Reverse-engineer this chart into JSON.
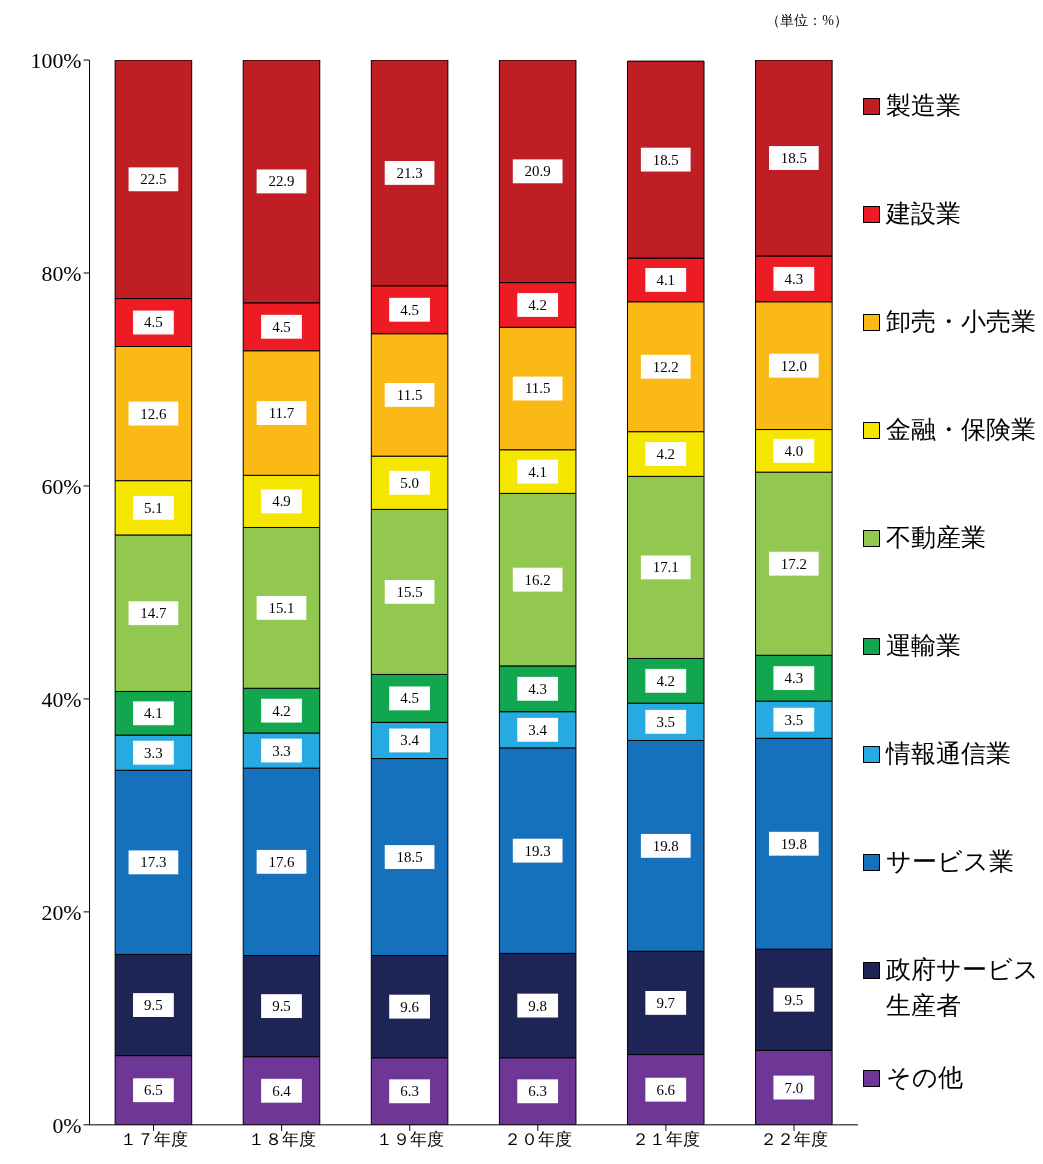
{
  "chart_data": {
    "type": "bar",
    "stacked": true,
    "annotations": [
      "（単位：%）"
    ],
    "categories": [
      "１７年度",
      "１８年度",
      "１９年度",
      "２０年度",
      "２１年度",
      "２２年度"
    ],
    "series": [
      {
        "name": "その他",
        "color": "#6f3795",
        "values": [
          6.5,
          6.4,
          6.3,
          6.3,
          6.6,
          7.0
        ],
        "value_labels": [
          "6.5",
          "6.4",
          "6.3",
          "6.3",
          "6.6",
          "7.0"
        ]
      },
      {
        "name": "政府サービス生産者",
        "color": "#1f2456",
        "values": [
          9.5,
          9.5,
          9.6,
          9.8,
          9.7,
          9.5
        ]
      },
      {
        "name": "サービス業",
        "color": "#1571bc",
        "values": [
          17.3,
          17.6,
          18.5,
          19.3,
          19.8,
          19.8
        ]
      },
      {
        "name": "情報通信業",
        "color": "#27aae1",
        "values": [
          3.3,
          3.3,
          3.4,
          3.4,
          3.5,
          3.5
        ]
      },
      {
        "name": "運輸業",
        "color": "#12a74f",
        "values": [
          4.1,
          4.2,
          4.5,
          4.3,
          4.2,
          4.3
        ]
      },
      {
        "name": "不動産業",
        "color": "#92c84f",
        "values": [
          14.7,
          15.1,
          15.5,
          16.2,
          17.1,
          17.2
        ]
      },
      {
        "name": "金融・保険業",
        "color": "#f5e600",
        "values": [
          5.1,
          4.9,
          5.0,
          4.1,
          4.2,
          4.0
        ],
        "value_labels": [
          "5.1",
          "4.9",
          "5.0",
          "4.1",
          "4.2",
          "4.0"
        ]
      },
      {
        "name": "卸売・小売業",
        "color": "#fbb916",
        "values": [
          12.6,
          11.7,
          11.5,
          11.5,
          12.2,
          12.0
        ],
        "value_labels": [
          "12.6",
          "11.7",
          "11.5",
          "11.5",
          "12.2",
          "12.0"
        ]
      },
      {
        "name": "建設業",
        "color": "#ed1c24",
        "values": [
          4.5,
          4.5,
          4.5,
          4.2,
          4.1,
          4.3
        ]
      },
      {
        "name": "製造業",
        "color": "#be1e24",
        "values": [
          22.5,
          22.9,
          21.3,
          20.9,
          18.5,
          18.5
        ]
      }
    ],
    "ylim": [
      0,
      100
    ],
    "yticks": [
      {
        "value": 0,
        "label": "0%"
      },
      {
        "value": 20,
        "label": "20%"
      },
      {
        "value": 40,
        "label": "40%"
      },
      {
        "value": 60,
        "label": "60%"
      },
      {
        "value": 80,
        "label": "80%"
      },
      {
        "value": 100,
        "label": "100%"
      }
    ],
    "data_labels": true,
    "grid": false,
    "legend": "right"
  }
}
